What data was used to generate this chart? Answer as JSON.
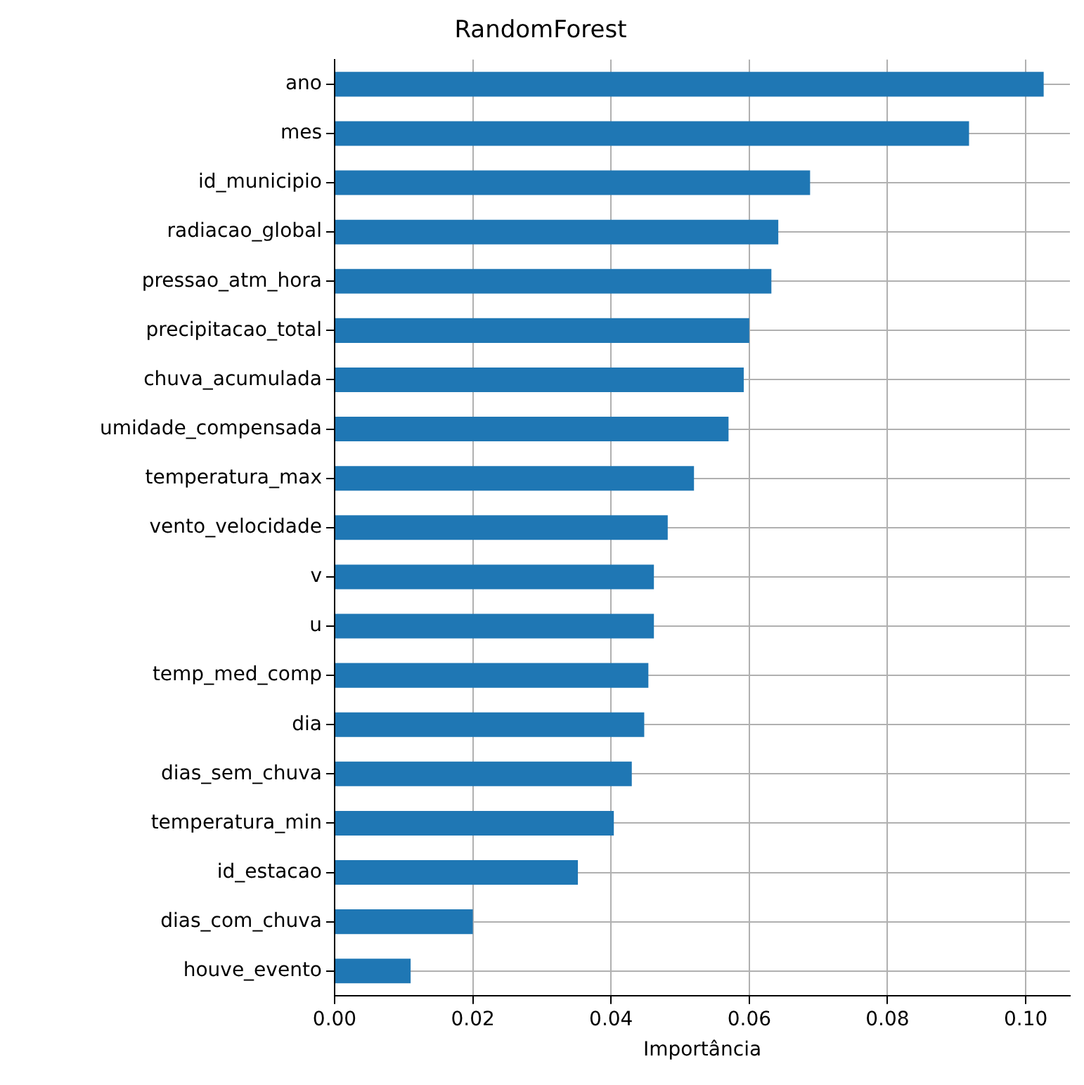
{
  "chart_data": {
    "type": "bar",
    "orientation": "horizontal",
    "title": "RandomForest",
    "xlabel": "Importância",
    "categories": [
      "ano",
      "mes",
      "id_municipio",
      "radiacao_global",
      "pressao_atm_hora",
      "precipitacao_total",
      "chuva_acumulada",
      "umidade_compensada",
      "temperatura_max",
      "vento_velocidade",
      "v",
      "u",
      "temp_med_comp",
      "dia",
      "dias_sem_chuva",
      "temperatura_min",
      "id_estacao",
      "dias_com_chuva",
      "houve_evento"
    ],
    "values": [
      0.1026,
      0.0918,
      0.0688,
      0.0642,
      0.0632,
      0.06,
      0.0592,
      0.057,
      0.052,
      0.0482,
      0.0462,
      0.0462,
      0.0454,
      0.0448,
      0.043,
      0.0404,
      0.0352,
      0.02,
      0.011
    ],
    "color": "#1f77b4",
    "xlim": [
      0,
      0.1064
    ],
    "xticks": [
      {
        "value": 0,
        "label": "0.00"
      },
      {
        "value": 0.02,
        "label": "0.02"
      },
      {
        "value": 0.04,
        "label": "0.04"
      },
      {
        "value": 0.06,
        "label": "0.06"
      },
      {
        "value": 0.08,
        "label": "0.08"
      },
      {
        "value": 0.1,
        "label": "0.10"
      }
    ],
    "grid": true
  }
}
